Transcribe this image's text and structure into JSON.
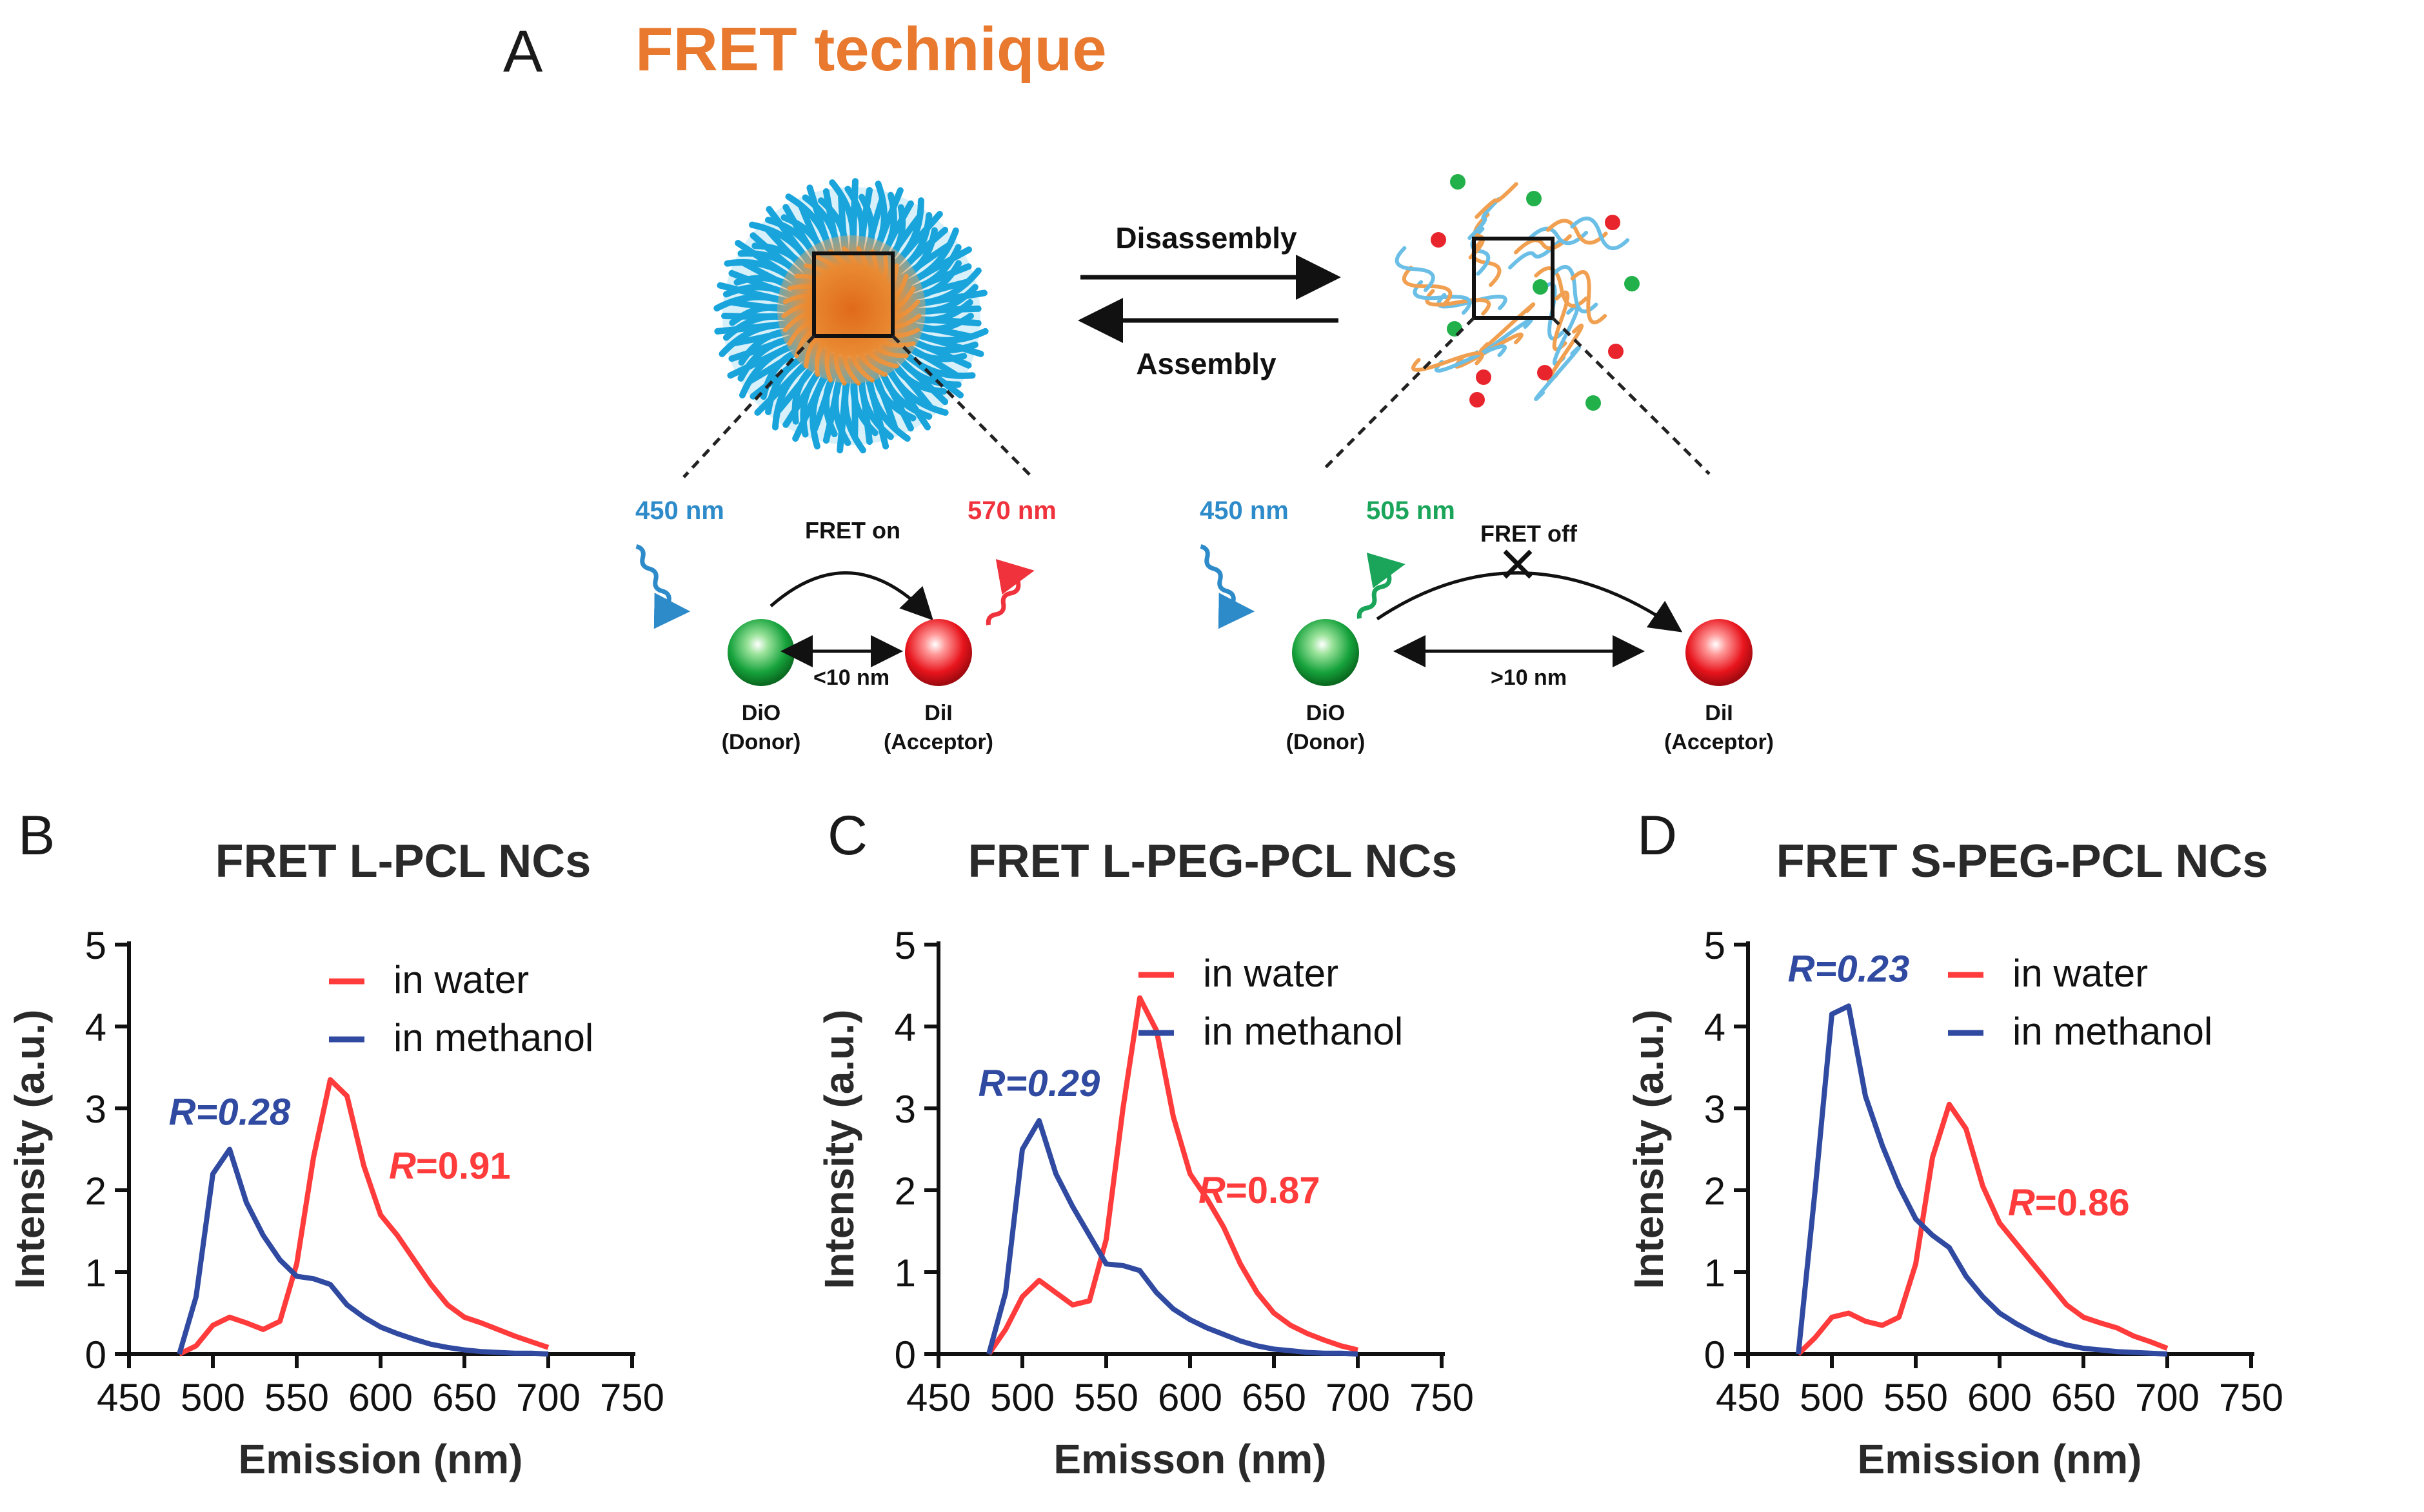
{
  "panelA": {
    "letter": "A",
    "title": "FRET technique",
    "title_color": "#e8792e",
    "disassembly": "Disassembly",
    "assembly": "Assembly",
    "left": {
      "excitation": "450 nm",
      "emission": "570 nm",
      "fret": "FRET on",
      "distance": "<10 nm",
      "donor_name": "DiO",
      "donor_role": "(Donor)",
      "acceptor_name": "DiI",
      "acceptor_role": "(Acceptor)"
    },
    "right": {
      "excitation": "450 nm",
      "emission": "505 nm",
      "fret": "FRET off",
      "distance": ">10 nm",
      "donor_name": "DiO",
      "donor_role": "(Donor)",
      "acceptor_name": "DiI",
      "acceptor_role": "(Acceptor)"
    },
    "colors": {
      "blue_label": "#2e8bc9",
      "red_label": "#f0323c",
      "green_label": "#1aa55a"
    }
  },
  "legend": {
    "water": "in water",
    "methanol": "in methanol"
  },
  "colors": {
    "water": "#ff3b3b",
    "methanol": "#2f4aa0"
  },
  "chart_data": [
    {
      "type": "line",
      "panel": "B",
      "title": "FRET L-PCL NCs",
      "xlabel": "Emission (nm)",
      "ylabel": "Intensity (a.u.)",
      "xlim": [
        450,
        750
      ],
      "ylim": [
        0,
        5
      ],
      "xticks": [
        450,
        500,
        550,
        600,
        650,
        700,
        750
      ],
      "yticks": [
        0,
        1,
        2,
        3,
        4,
        5
      ],
      "annotations": {
        "methanol_R": "R=0.28",
        "water_R_italic": "R",
        "water_R_value": "=0.91"
      },
      "series": [
        {
          "name": "in water",
          "x": [
            480,
            490,
            500,
            510,
            520,
            530,
            540,
            550,
            560,
            570,
            580,
            590,
            600,
            610,
            620,
            630,
            640,
            650,
            660,
            670,
            680,
            690,
            700
          ],
          "y": [
            0,
            0.1,
            0.35,
            0.45,
            0.38,
            0.3,
            0.4,
            1.1,
            2.4,
            3.35,
            3.15,
            2.3,
            1.7,
            1.45,
            1.15,
            0.85,
            0.6,
            0.45,
            0.38,
            0.3,
            0.22,
            0.15,
            0.08
          ]
        },
        {
          "name": "in methanol",
          "x": [
            480,
            490,
            500,
            510,
            520,
            530,
            540,
            550,
            560,
            570,
            580,
            590,
            600,
            610,
            620,
            630,
            640,
            650,
            660,
            670,
            680,
            690,
            700
          ],
          "y": [
            0,
            0.7,
            2.2,
            2.5,
            1.85,
            1.45,
            1.15,
            0.95,
            0.92,
            0.85,
            0.6,
            0.45,
            0.33,
            0.25,
            0.18,
            0.12,
            0.08,
            0.05,
            0.03,
            0.02,
            0.01,
            0.01,
            0
          ]
        }
      ]
    },
    {
      "type": "line",
      "panel": "C",
      "title": "FRET L-PEG-PCL NCs",
      "xlabel": "Emisson (nm)",
      "ylabel": "Intensity (a.u.)",
      "xlim": [
        450,
        750
      ],
      "ylim": [
        0,
        5
      ],
      "xticks": [
        450,
        500,
        550,
        600,
        650,
        700,
        750
      ],
      "yticks": [
        0,
        1,
        2,
        3,
        4,
        5
      ],
      "annotations": {
        "methanol_R": "R=0.29",
        "water_R_italic": "R",
        "water_R_value": "=0.87"
      },
      "series": [
        {
          "name": "in water",
          "x": [
            480,
            490,
            500,
            510,
            520,
            530,
            540,
            550,
            560,
            570,
            580,
            590,
            600,
            610,
            620,
            630,
            640,
            650,
            660,
            670,
            680,
            690,
            700
          ],
          "y": [
            0,
            0.3,
            0.7,
            0.9,
            0.75,
            0.6,
            0.65,
            1.4,
            3.0,
            4.35,
            3.95,
            2.9,
            2.2,
            1.9,
            1.55,
            1.1,
            0.75,
            0.5,
            0.35,
            0.25,
            0.17,
            0.1,
            0.05
          ]
        },
        {
          "name": "in methanol",
          "x": [
            480,
            490,
            500,
            510,
            520,
            530,
            540,
            550,
            560,
            570,
            580,
            590,
            600,
            610,
            620,
            630,
            640,
            650,
            660,
            670,
            680,
            690,
            700
          ],
          "y": [
            0,
            0.75,
            2.5,
            2.85,
            2.2,
            1.8,
            1.45,
            1.1,
            1.08,
            1.02,
            0.75,
            0.55,
            0.42,
            0.32,
            0.24,
            0.16,
            0.1,
            0.06,
            0.04,
            0.02,
            0.01,
            0.01,
            0
          ]
        }
      ]
    },
    {
      "type": "line",
      "panel": "D",
      "title": "FRET S-PEG-PCL NCs",
      "xlabel": "Emission (nm)",
      "ylabel": "Intensity (a.u.)",
      "xlim": [
        450,
        750
      ],
      "ylim": [
        0,
        5
      ],
      "xticks": [
        450,
        500,
        550,
        600,
        650,
        700,
        750
      ],
      "yticks": [
        0,
        1,
        2,
        3,
        4,
        5
      ],
      "annotations": {
        "methanol_R": "R=0.23",
        "water_R_italic": "R",
        "water_R_value": "=0.86"
      },
      "series": [
        {
          "name": "in water",
          "x": [
            480,
            490,
            500,
            510,
            520,
            530,
            540,
            550,
            560,
            570,
            580,
            590,
            600,
            610,
            620,
            630,
            640,
            650,
            660,
            670,
            680,
            690,
            700
          ],
          "y": [
            0,
            0.2,
            0.45,
            0.5,
            0.4,
            0.35,
            0.45,
            1.1,
            2.4,
            3.05,
            2.75,
            2.05,
            1.6,
            1.35,
            1.1,
            0.85,
            0.6,
            0.45,
            0.38,
            0.32,
            0.22,
            0.15,
            0.07
          ]
        },
        {
          "name": "in methanol",
          "x": [
            480,
            490,
            500,
            510,
            520,
            530,
            540,
            550,
            560,
            570,
            580,
            590,
            600,
            610,
            620,
            630,
            640,
            650,
            660,
            670,
            680,
            690,
            700
          ],
          "y": [
            0,
            2.0,
            4.15,
            4.25,
            3.15,
            2.55,
            2.05,
            1.65,
            1.45,
            1.3,
            0.95,
            0.7,
            0.5,
            0.37,
            0.26,
            0.17,
            0.11,
            0.07,
            0.05,
            0.03,
            0.02,
            0.01,
            0
          ]
        }
      ]
    }
  ]
}
